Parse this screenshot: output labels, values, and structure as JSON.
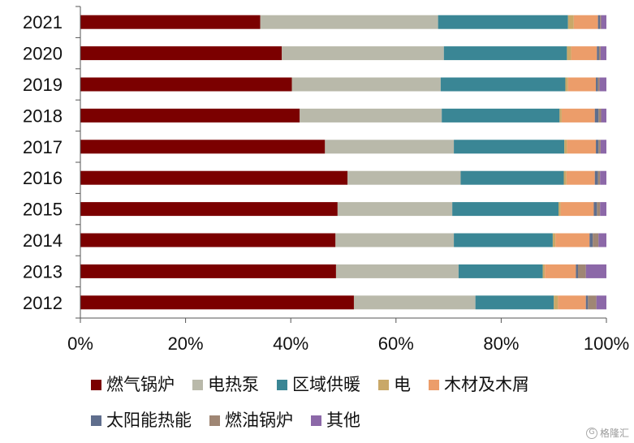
{
  "chart_data": {
    "type": "bar",
    "orientation": "horizontal",
    "stacked": true,
    "categories": [
      "2021",
      "2020",
      "2019",
      "2018",
      "2017",
      "2016",
      "2015",
      "2014",
      "2013",
      "2012"
    ],
    "xlim": [
      0,
      100
    ],
    "x_ticks": [
      "0%",
      "20%",
      "40%",
      "60%",
      "80%",
      "100%"
    ],
    "grid": false,
    "legend_position": "bottom",
    "series": [
      {
        "name": "燃气锅炉",
        "color": "#7b0000",
        "values": [
          34.2,
          38.3,
          40.2,
          41.7,
          46.5,
          50.8,
          48.9,
          48.5,
          48.6,
          52.0
        ]
      },
      {
        "name": "电热泵",
        "color": "#b9b9aa",
        "values": [
          33.8,
          30.8,
          28.3,
          27.0,
          24.5,
          21.5,
          21.8,
          22.5,
          23.3,
          23.1
        ]
      },
      {
        "name": "区域供暖",
        "color": "#3a8695",
        "values": [
          24.7,
          23.4,
          23.7,
          22.4,
          21.0,
          19.6,
          20.2,
          18.8,
          16.0,
          14.9
        ]
      },
      {
        "name": "电",
        "color": "#c9a868",
        "values": [
          1.1,
          0.8,
          0.5,
          0.4,
          0.5,
          0.5,
          0.4,
          0.5,
          0.4,
          0.8
        ]
      },
      {
        "name": "木材及木屑",
        "color": "#ec9d6a",
        "values": [
          4.6,
          4.9,
          5.3,
          6.3,
          5.5,
          5.4,
          6.3,
          6.5,
          5.9,
          5.3
        ]
      },
      {
        "name": "太阳能热能",
        "color": "#5f6e8d",
        "values": [
          0.4,
          0.4,
          0.4,
          0.7,
          0.5,
          0.6,
          0.6,
          0.6,
          0.4,
          0.4
        ]
      },
      {
        "name": "燃油锅炉",
        "color": "#9f8674",
        "values": [
          0.2,
          0.3,
          0.3,
          0.5,
          0.4,
          0.4,
          0.6,
          1.1,
          1.5,
          1.6
        ]
      },
      {
        "name": "其他",
        "color": "#8c68a8",
        "values": [
          1.0,
          1.1,
          1.3,
          1.0,
          1.1,
          1.2,
          1.2,
          1.5,
          3.9,
          1.9
        ]
      }
    ]
  },
  "watermark": "格隆汇"
}
